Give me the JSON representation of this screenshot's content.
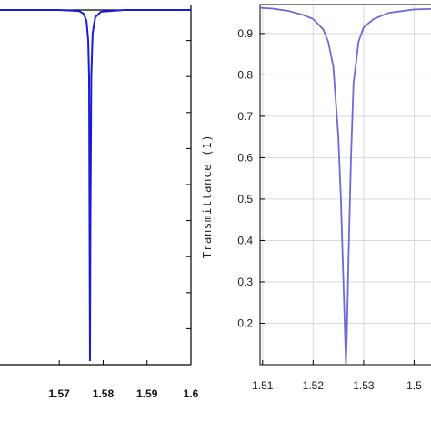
{
  "chart_data": [
    {
      "type": "line",
      "title": "",
      "xlabel": "",
      "ylabel": "",
      "x_ticks": [
        "1.57",
        "1.58",
        "1.59",
        "1.6"
      ],
      "xlim": [
        1.5565,
        1.6
      ],
      "ylim": [
        0,
        1
      ],
      "grid": false,
      "series": [
        {
          "color": "#1a1adb",
          "x": [
            1.5565,
            1.57,
            1.5745,
            1.5755,
            1.5762,
            1.5766,
            1.5768,
            1.5769,
            1.577,
            1.5771,
            1.5773,
            1.5776,
            1.5782,
            1.5795,
            1.585,
            1.6
          ],
          "y": [
            0.985,
            0.985,
            0.982,
            0.975,
            0.955,
            0.9,
            0.8,
            0.4,
            0.01,
            0.4,
            0.8,
            0.92,
            0.965,
            0.98,
            0.985,
            0.985
          ]
        }
      ]
    },
    {
      "type": "line",
      "title": "",
      "xlabel": "",
      "ylabel": "Transmittance (1)",
      "x_ticks": [
        "1.51",
        "1.52",
        "1.53",
        "1.5"
      ],
      "y_ticks": [
        "0.9",
        "0.8",
        "0.7",
        "0.6",
        "0.5",
        "0.4",
        "0.3",
        "0.2"
      ],
      "xlim": [
        1.5095,
        1.5455
      ],
      "ylim": [
        0.1,
        0.97
      ],
      "grid": true,
      "series": [
        {
          "color": "#6b6bd6",
          "x": [
            1.5095,
            1.512,
            1.515,
            1.518,
            1.52,
            1.522,
            1.523,
            1.524,
            1.525,
            1.5255,
            1.526,
            1.5263,
            1.5265,
            1.5267,
            1.527,
            1.5275,
            1.528,
            1.529,
            1.53,
            1.532,
            1.535,
            1.54,
            1.5455
          ],
          "y": [
            0.962,
            0.96,
            0.955,
            0.945,
            0.935,
            0.91,
            0.88,
            0.82,
            0.65,
            0.5,
            0.3,
            0.18,
            0.1,
            0.18,
            0.35,
            0.6,
            0.78,
            0.88,
            0.915,
            0.935,
            0.95,
            0.958,
            0.96
          ]
        }
      ]
    }
  ]
}
